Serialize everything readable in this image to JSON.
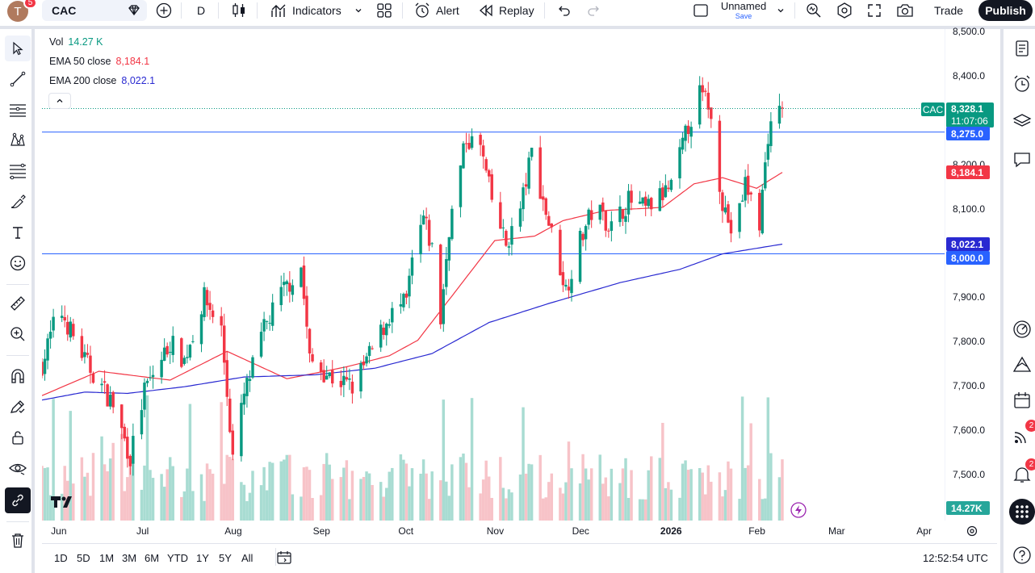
{
  "header": {
    "avatar_letter": "T",
    "avatar_badge": "5",
    "symbol": "CAC",
    "interval": "D",
    "indicators_label": "Indicators",
    "alert_label": "Alert",
    "replay_label": "Replay",
    "layout_name": "Unnamed",
    "layout_save": "Save",
    "trade_label": "Trade",
    "publish_label": "Publish"
  },
  "legend": {
    "vol_label": "Vol",
    "vol_value": "14.27 K",
    "ema50_label": "EMA 50 close",
    "ema50_value": "8,184.1",
    "ema200_label": "EMA 200 close",
    "ema200_value": "8,022.1"
  },
  "price_axis": {
    "ticks": [
      "8,500.0",
      "8,400.0",
      "8,300.0",
      "8,200.0",
      "8,100.0",
      "8,000.0",
      "7,900.0",
      "7,800.0",
      "7,700.0",
      "7,600.0",
      "7,500.0"
    ],
    "tick_values": [
      8500,
      8400,
      8300,
      8200,
      8100,
      8000,
      7900,
      7800,
      7700,
      7600,
      7500
    ]
  },
  "labels": {
    "symbol_tag": "CAC",
    "last_price": "8,328.1",
    "countdown": "11:07:06",
    "hline_upper": "8,275.0",
    "ema50_tag": "8,184.1",
    "ema200_tag": "8,022.1",
    "hline_lower": "8,000.0",
    "volume_tag": "14.27K"
  },
  "time_axis": {
    "months": [
      "Jun",
      "Jul",
      "Aug",
      "Sep",
      "Oct",
      "Nov",
      "Dec",
      "2026",
      "Feb",
      "Mar",
      "Apr"
    ]
  },
  "bottom": {
    "ranges": [
      "1D",
      "5D",
      "1M",
      "3M",
      "6M",
      "YTD",
      "1Y",
      "5Y",
      "All"
    ],
    "clock": "12:52:54 UTC"
  },
  "right_panel": {
    "ideas_badge": "2",
    "alerts_badge": "2"
  },
  "colors": {
    "up": "#089981",
    "down": "#f23645",
    "ema50": "#f23645",
    "ema200": "#2929d1",
    "hline": "#2962ff",
    "last_price": "#089981",
    "vol_up": "#a8dcd2",
    "vol_down": "#f7c3c8"
  },
  "chart_data": {
    "type": "candlestick",
    "symbol": "CAC",
    "interval": "D",
    "ylim": [
      7450,
      8520
    ],
    "x_range": [
      "2025-05-26",
      "2026-04-08"
    ],
    "horizontal_lines": [
      8275.0,
      8000.0
    ],
    "last_price": 8328.1,
    "ema50_last": 8184.1,
    "ema200_last": 8022.1,
    "volume_last": "14.27K",
    "ema50_anchors": [
      [
        "2025-05-26",
        7680
      ],
      [
        "2025-06-15",
        7735
      ],
      [
        "2025-07-10",
        7715
      ],
      [
        "2025-07-30",
        7780
      ],
      [
        "2025-08-20",
        7718
      ],
      [
        "2025-09-10",
        7745
      ],
      [
        "2025-09-25",
        7770
      ],
      [
        "2025-10-05",
        7805
      ],
      [
        "2025-10-20",
        7930
      ],
      [
        "2025-11-01",
        8030
      ],
      [
        "2025-11-15",
        8040
      ],
      [
        "2025-11-25",
        8075
      ],
      [
        "2025-12-10",
        8098
      ],
      [
        "2025-12-30",
        8105
      ],
      [
        "2026-01-10",
        8158
      ],
      [
        "2026-01-20",
        8172
      ],
      [
        "2026-02-01",
        8148
      ],
      [
        "2026-02-10",
        8184
      ]
    ],
    "ema200_anchors": [
      [
        "2025-05-26",
        7670
      ],
      [
        "2025-06-10",
        7688
      ],
      [
        "2025-06-25",
        7685
      ],
      [
        "2025-07-15",
        7700
      ],
      [
        "2025-08-05",
        7722
      ],
      [
        "2025-08-30",
        7727
      ],
      [
        "2025-09-20",
        7742
      ],
      [
        "2025-10-10",
        7775
      ],
      [
        "2025-10-30",
        7845
      ],
      [
        "2025-11-20",
        7888
      ],
      [
        "2025-12-15",
        7935
      ],
      [
        "2026-01-05",
        7965
      ],
      [
        "2026-01-20",
        8000
      ],
      [
        "2026-02-10",
        8022
      ]
    ],
    "price_anchors": [
      [
        "2025-05-26",
        7750
      ],
      [
        "2025-06-01",
        7880
      ],
      [
        "2025-06-10",
        7760
      ],
      [
        "2025-06-20",
        7660
      ],
      [
        "2025-06-26",
        7540
      ],
      [
        "2025-07-01",
        7690
      ],
      [
        "2025-07-10",
        7800
      ],
      [
        "2025-07-15",
        7760
      ],
      [
        "2025-07-22",
        7900
      ],
      [
        "2025-07-28",
        7830
      ],
      [
        "2025-08-01",
        7540
      ],
      [
        "2025-08-05",
        7680
      ],
      [
        "2025-08-12",
        7830
      ],
      [
        "2025-08-18",
        7910
      ],
      [
        "2025-08-25",
        7970
      ],
      [
        "2025-08-28",
        7760
      ],
      [
        "2025-09-05",
        7720
      ],
      [
        "2025-09-12",
        7700
      ],
      [
        "2025-09-18",
        7770
      ],
      [
        "2025-09-25",
        7860
      ],
      [
        "2025-10-01",
        7890
      ],
      [
        "2025-10-03",
        7980
      ],
      [
        "2025-10-07",
        8080
      ],
      [
        "2025-10-10",
        8010
      ],
      [
        "2025-10-13",
        7850
      ],
      [
        "2025-10-16",
        8060
      ],
      [
        "2025-10-22",
        8260
      ],
      [
        "2025-10-27",
        8240
      ],
      [
        "2025-10-31",
        8120
      ],
      [
        "2025-11-05",
        8020
      ],
      [
        "2025-11-10",
        8100
      ],
      [
        "2025-11-14",
        8230
      ],
      [
        "2025-11-18",
        8120
      ],
      [
        "2025-11-22",
        8020
      ],
      [
        "2025-11-26",
        7920
      ],
      [
        "2025-12-01",
        8030
      ],
      [
        "2025-12-06",
        8110
      ],
      [
        "2025-12-12",
        8060
      ],
      [
        "2025-12-18",
        8120
      ],
      [
        "2025-12-24",
        8100
      ],
      [
        "2026-01-02",
        8150
      ],
      [
        "2026-01-08",
        8290
      ],
      [
        "2026-01-12",
        8360
      ],
      [
        "2026-01-15",
        8340
      ],
      [
        "2026-01-20",
        8120
      ],
      [
        "2026-01-24",
        8030
      ],
      [
        "2026-01-28",
        8160
      ],
      [
        "2026-02-02",
        8070
      ],
      [
        "2026-02-05",
        8270
      ],
      [
        "2026-02-10",
        8328.1
      ]
    ]
  }
}
